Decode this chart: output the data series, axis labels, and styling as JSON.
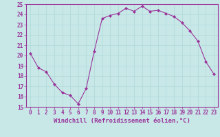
{
  "x": [
    0,
    1,
    2,
    3,
    4,
    5,
    6,
    7,
    8,
    9,
    10,
    11,
    12,
    13,
    14,
    15,
    16,
    17,
    18,
    19,
    20,
    21,
    22,
    23
  ],
  "y": [
    20.2,
    18.8,
    18.4,
    17.2,
    16.4,
    16.1,
    15.3,
    16.8,
    20.4,
    23.6,
    23.9,
    24.1,
    24.6,
    24.3,
    24.8,
    24.3,
    24.4,
    24.1,
    23.8,
    23.2,
    22.4,
    21.4,
    19.4,
    18.2
  ],
  "line_color": "#993399",
  "marker": "D",
  "marker_size": 2.0,
  "bg_color": "#c8e8e8",
  "grid_color": "#b0d8d8",
  "xlabel": "Windchill (Refroidissement éolien,°C)",
  "xlabel_color": "#993399",
  "yticks": [
    15,
    16,
    17,
    18,
    19,
    20,
    21,
    22,
    23,
    24,
    25
  ],
  "xticks": [
    0,
    1,
    2,
    3,
    4,
    5,
    6,
    7,
    8,
    9,
    10,
    11,
    12,
    13,
    14,
    15,
    16,
    17,
    18,
    19,
    20,
    21,
    22,
    23
  ],
  "ylim": [
    15,
    25
  ],
  "xlim": [
    -0.5,
    23.5
  ],
  "tick_color": "#993399",
  "tick_fontsize": 5.5,
  "xlabel_fontsize": 6.5,
  "line_width": 0.8
}
